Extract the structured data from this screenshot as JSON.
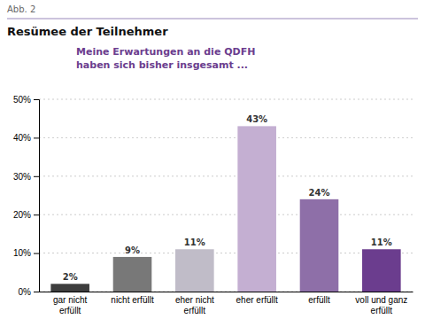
{
  "chart_data": {
    "type": "bar",
    "title": "Resümee der Teilnehmer",
    "subtitle": "Meine Erwartungen an die QDFH\nhaben sich bisher insgesamt ...",
    "annotations": [
      "Abb. 2"
    ],
    "categories": [
      "gar nicht\nerfüllt",
      "nicht erfüllt",
      "eher nicht\nerfüllt",
      "eher erfüllt",
      "erfüllt",
      "voll und ganz\nerfüllt"
    ],
    "values": [
      2,
      9,
      11,
      43,
      24,
      11
    ],
    "value_labels": [
      "2%",
      "9%",
      "11%",
      "43%",
      "24%",
      "11%"
    ],
    "colors": [
      "#3d3d3d",
      "#787878",
      "#c0bcc8",
      "#c4afd2",
      "#8e6fa8",
      "#6b3d8e"
    ],
    "ylim": [
      0,
      50
    ],
    "yticks": [
      {
        "value": 0,
        "label": "0%"
      },
      {
        "value": 10,
        "label": "10%"
      },
      {
        "value": 20,
        "label": "20%"
      },
      {
        "value": 30,
        "label": "30%"
      },
      {
        "value": 40,
        "label": "40%"
      },
      {
        "value": 50,
        "label": "50%"
      }
    ],
    "grid": true,
    "data_labels": true
  }
}
